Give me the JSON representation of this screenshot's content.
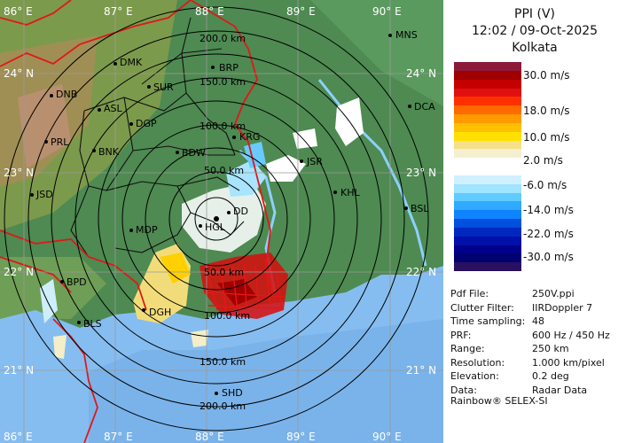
{
  "product": {
    "title": "PPI (V)",
    "datetime": "12:02 / 09-Oct-2025",
    "station": "Kolkata"
  },
  "legend": {
    "unit": "m/s",
    "labels": [
      "30.0 m/s",
      "18.0 m/s",
      "10.0 m/s",
      "2.0 m/s",
      "-6.0 m/s",
      "-14.0 m/s",
      "-22.0 m/s",
      "-30.0 m/s"
    ],
    "colors": [
      "#8b1a3a",
      "#a00000",
      "#c40000",
      "#e01010",
      "#ff3000",
      "#ff6a00",
      "#ff9a00",
      "#ffc000",
      "#ffe000",
      "#f6e08a",
      "#f4f0d0",
      "#ffffff",
      "#ffffff",
      "#d0f0ff",
      "#a0e4ff",
      "#60ccff",
      "#30aaff",
      "#1084ff",
      "#0050e0",
      "#0028c0",
      "#0010a8",
      "#00008c",
      "#000070",
      "#2a1060"
    ]
  },
  "map": {
    "lon_labels": [
      "86° E",
      "87° E",
      "88° E",
      "89° E",
      "90° E"
    ],
    "lat_labels": [
      "24° N",
      "23° N",
      "22° N",
      "21° N"
    ],
    "range_rings": [
      "50.0 km",
      "100.0 km",
      "150.0 km",
      "200.0 km"
    ],
    "places": [
      "MNS",
      "DMK",
      "BRP",
      "DNB",
      "SUR",
      "ASL",
      "DGP",
      "DCA",
      "PRL",
      "BNK",
      "KRG",
      "BDW",
      "JSR",
      "JSD",
      "KHL",
      "BSL",
      "MDP",
      "DD",
      "HGL",
      "BPD",
      "DGH",
      "BLS",
      "SHD"
    ]
  },
  "info": [
    {
      "key": "Pdf File:",
      "value": "250V.ppi"
    },
    {
      "key": "Clutter Filter:",
      "value": "IIRDoppler 7"
    },
    {
      "key": "Time sampling:",
      "value": "48"
    },
    {
      "key": "PRF:",
      "value": "600 Hz / 450 Hz"
    },
    {
      "key": "Range:",
      "value": "250 km"
    },
    {
      "key": "Resolution:",
      "value": "1.000 km/pixel"
    },
    {
      "key": "Elevation:",
      "value": "0.2 deg"
    },
    {
      "key": "Data:",
      "value": "Radar Data"
    }
  ],
  "footer": "Rainbow® SELEX-SI"
}
